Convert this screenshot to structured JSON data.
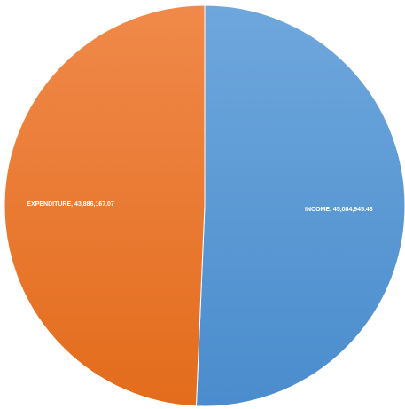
{
  "chart_data": {
    "type": "pie",
    "title": "",
    "slices": [
      {
        "label": "INCOME",
        "value": 45084945.43,
        "value_text": "45,084,945.43",
        "color": "#5b9bd5"
      },
      {
        "label": "EXPENDITURE",
        "value": 43886167.07,
        "value_text": "43,886,167.07",
        "color": "#ed7d31"
      }
    ],
    "start_angle": "12 o'clock",
    "direction": "clockwise",
    "legend": "none",
    "data_labels": "inside"
  }
}
